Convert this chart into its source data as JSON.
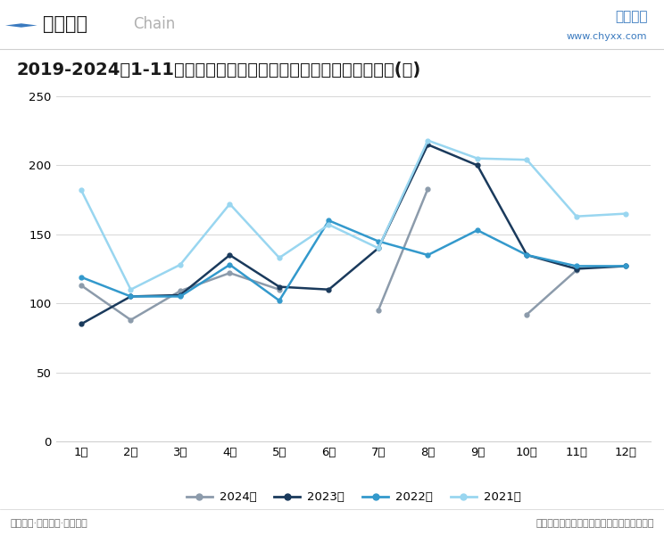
{
  "title": "2019-2024年1-11月中国海上搜救中心共组织、协调搜救行动次数(次)",
  "months": [
    "1月",
    "2月",
    "3月",
    "4月",
    "5月",
    "6月",
    "7月",
    "8月",
    "9月",
    "10月",
    "11月",
    "12月"
  ],
  "series": {
    "2024年": {
      "data": [
        113,
        88,
        109,
        122,
        110,
        null,
        95,
        183,
        null,
        92,
        124,
        null
      ],
      "color": "#8c9bab"
    },
    "2023年": {
      "data": [
        85,
        105,
        106,
        135,
        112,
        110,
        140,
        215,
        200,
        135,
        125,
        127
      ],
      "color": "#1a3a5c"
    },
    "2022年": {
      "data": [
        119,
        105,
        105,
        128,
        102,
        160,
        145,
        135,
        153,
        135,
        127,
        127
      ],
      "color": "#3399cc"
    },
    "2021年": {
      "data": [
        182,
        110,
        128,
        172,
        133,
        157,
        140,
        218,
        205,
        204,
        163,
        165
      ],
      "color": "#99d6f0"
    }
  },
  "ylim": [
    0,
    250
  ],
  "yticks": [
    0,
    50,
    100,
    150,
    200,
    250
  ],
  "header_diamond_color": "#3a7abf",
  "header_text": "行业现状",
  "header_sub_text": "Chain",
  "title_bg_color": "#dce8f5",
  "bg_color": "#ffffff",
  "title_fontsize": 14,
  "legend_order": [
    "2024年",
    "2023年",
    "2022年",
    "2021年"
  ],
  "footer_left": "精品报告·专项定制·品质服务",
  "footer_right": "资料来源：中国海上搜救中心、智研咨询整理",
  "brand_text": "智研咨询",
  "brand_url": "www.chyxx.com"
}
